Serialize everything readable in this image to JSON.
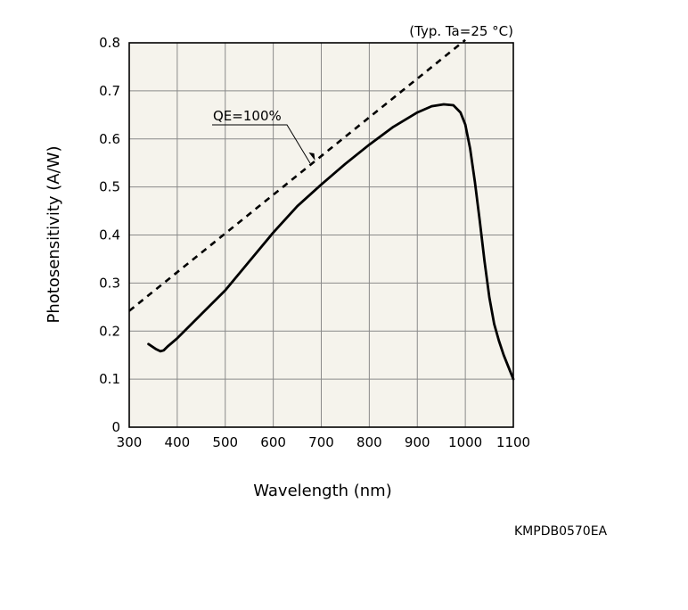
{
  "chart_data": {
    "type": "line",
    "title": "",
    "condition_note": "(Typ. Ta=25 °C)",
    "xlabel": "Wavelength (nm)",
    "ylabel": "Photosensitivity (A/W)",
    "xlim": [
      300,
      1100
    ],
    "ylim": [
      0,
      0.8
    ],
    "x_ticks": [
      300,
      400,
      500,
      600,
      700,
      800,
      900,
      1000,
      1100
    ],
    "x_tick_labels": [
      "300",
      "400",
      "500",
      "600",
      "700",
      "800",
      "900",
      "1000",
      "1100"
    ],
    "y_ticks": [
      0,
      0.1,
      0.2,
      0.3,
      0.4,
      0.5,
      0.6,
      0.7,
      0.8
    ],
    "y_tick_labels": [
      "0",
      "0.1",
      "0.2",
      "0.3",
      "0.4",
      "0.5",
      "0.6",
      "0.7",
      "0.8"
    ],
    "grid": true,
    "series": [
      {
        "name": "Photosensitivity",
        "style": "solid",
        "x": [
          340,
          355,
          365,
          372,
          380,
          400,
          450,
          500,
          550,
          600,
          650,
          700,
          750,
          800,
          850,
          900,
          930,
          955,
          975,
          990,
          1000,
          1010,
          1020,
          1030,
          1040,
          1050,
          1060,
          1070,
          1080,
          1090,
          1100
        ],
        "y": [
          0.173,
          0.163,
          0.158,
          0.16,
          0.168,
          0.185,
          0.235,
          0.285,
          0.345,
          0.405,
          0.46,
          0.505,
          0.548,
          0.588,
          0.625,
          0.655,
          0.668,
          0.672,
          0.67,
          0.655,
          0.63,
          0.58,
          0.51,
          0.43,
          0.345,
          0.27,
          0.215,
          0.18,
          0.15,
          0.125,
          0.1
        ]
      },
      {
        "name": "QE=100%",
        "style": "dashed",
        "x": [
          300,
          1000
        ],
        "y": [
          0.242,
          0.806
        ]
      }
    ],
    "annotations": [
      {
        "text": "QE=100%",
        "points_to": {
          "x": 687,
          "y": 0.555
        }
      }
    ]
  },
  "footer": {
    "document_code": "KMPDB0570EA"
  }
}
